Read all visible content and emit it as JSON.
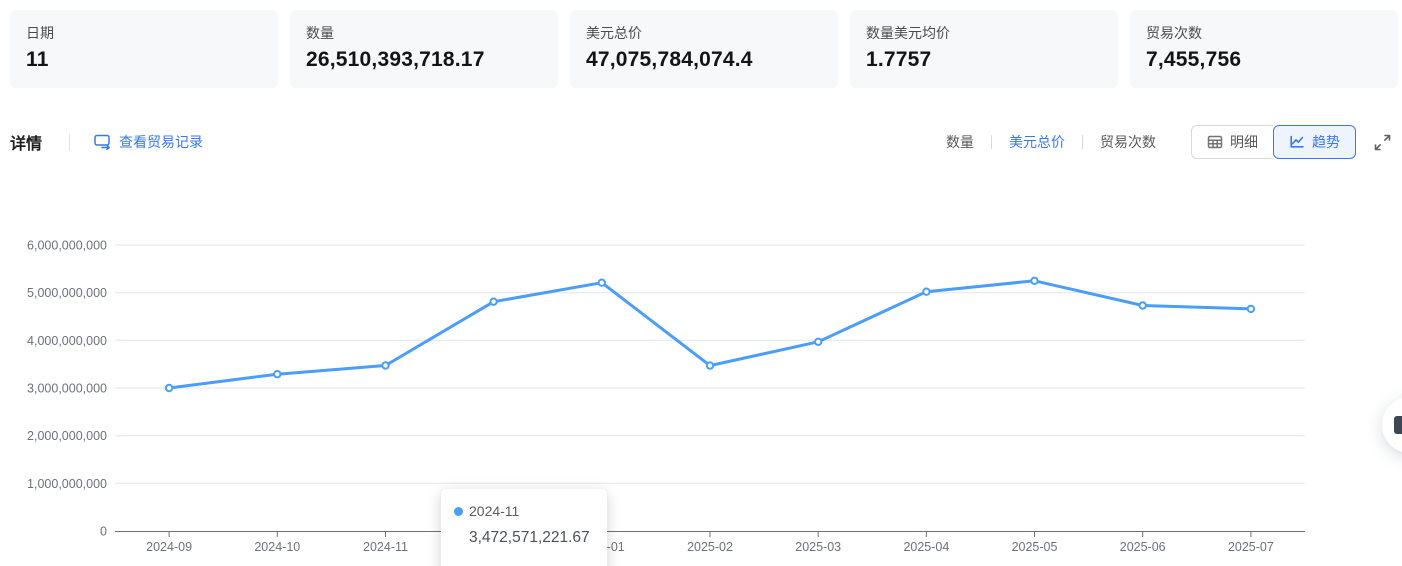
{
  "colors": {
    "accent": "#3877f2",
    "line": "#4a9df8",
    "grid": "#e0e6f1",
    "axis": "#6e7079",
    "card_bg": "#f7f8fa"
  },
  "stats": [
    {
      "label": "日期",
      "value": "11"
    },
    {
      "label": "数量",
      "value": "26,510,393,718.17"
    },
    {
      "label": "美元总价",
      "value": "47,075,784,074.4"
    },
    {
      "label": "数量美元均价",
      "value": "1.7757"
    },
    {
      "label": "贸易次数",
      "value": "7,455,756"
    }
  ],
  "detail_bar": {
    "title": "详情",
    "link_label": "查看贸易记录",
    "metric_tabs": [
      {
        "label": "数量",
        "active": false
      },
      {
        "label": "美元总价",
        "active": true
      },
      {
        "label": "贸易次数",
        "active": false
      }
    ],
    "view_toggle": [
      {
        "label": "明细",
        "icon": "table-grid-icon",
        "active": false
      },
      {
        "label": "趋势",
        "icon": "line-chart-icon",
        "active": true
      }
    ],
    "fullscreen_icon": "expand-icon"
  },
  "tooltip": {
    "marker": "series-dot",
    "date": "2024-11",
    "value": "3,472,571,221.67"
  },
  "fab_icon": "headset-icon",
  "chart_data": {
    "type": "line",
    "title": "",
    "xlabel": "",
    "ylabel": "",
    "categories": [
      "2024-09",
      "2024-10",
      "2024-11",
      "2024-12",
      "2025-01",
      "2025-02",
      "2025-03",
      "2025-04",
      "2025-05",
      "2025-06",
      "2025-07"
    ],
    "series": [
      {
        "name": "美元总价",
        "values": [
          3000000000,
          3290000000,
          3472571221.67,
          4810000000,
          5210000000,
          3470000000,
          3970000000,
          5020000000,
          5250000000,
          4730000000,
          4660000000
        ]
      }
    ],
    "ylim": [
      0,
      6000000000
    ],
    "y_interval": 1000000000,
    "y_tick_labels": [
      "0",
      "1,000,000,000",
      "2,000,000,000",
      "3,000,000,000",
      "4,000,000,000",
      "5,000,000,000",
      "6,000,000,000"
    ],
    "grid": true,
    "legend": false,
    "highlighted_category": "2024-11"
  }
}
